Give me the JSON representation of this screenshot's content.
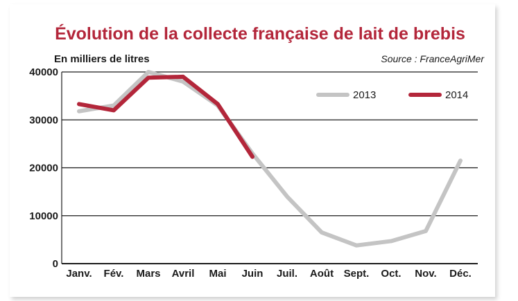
{
  "chart_data": {
    "type": "line",
    "title": "Évolution de la collecte française de lait de brebis",
    "ylabel": "En milliers de litres",
    "source": "Source : FranceAgriMer",
    "categories": [
      "Janv.",
      "Fév.",
      "Mars",
      "Avril",
      "Mai",
      "Juin",
      "Juil.",
      "Août",
      "Sept.",
      "Oct.",
      "Nov.",
      "Déc."
    ],
    "ylim": [
      0,
      40000
    ],
    "yticks": [
      "0",
      "10000",
      "20000",
      "30000",
      "40000"
    ],
    "grid": true,
    "legend_position": "top-right",
    "series": [
      {
        "name": "2013",
        "color": "#c4c4c4",
        "values": [
          31800,
          33000,
          40000,
          38000,
          33000,
          23000,
          14000,
          6500,
          3800,
          4700,
          6800,
          21500
        ]
      },
      {
        "name": "2014",
        "color": "#b3263a",
        "values": [
          33300,
          32000,
          38800,
          39000,
          33300,
          22300,
          null,
          null,
          null,
          null,
          null,
          null
        ]
      }
    ]
  }
}
